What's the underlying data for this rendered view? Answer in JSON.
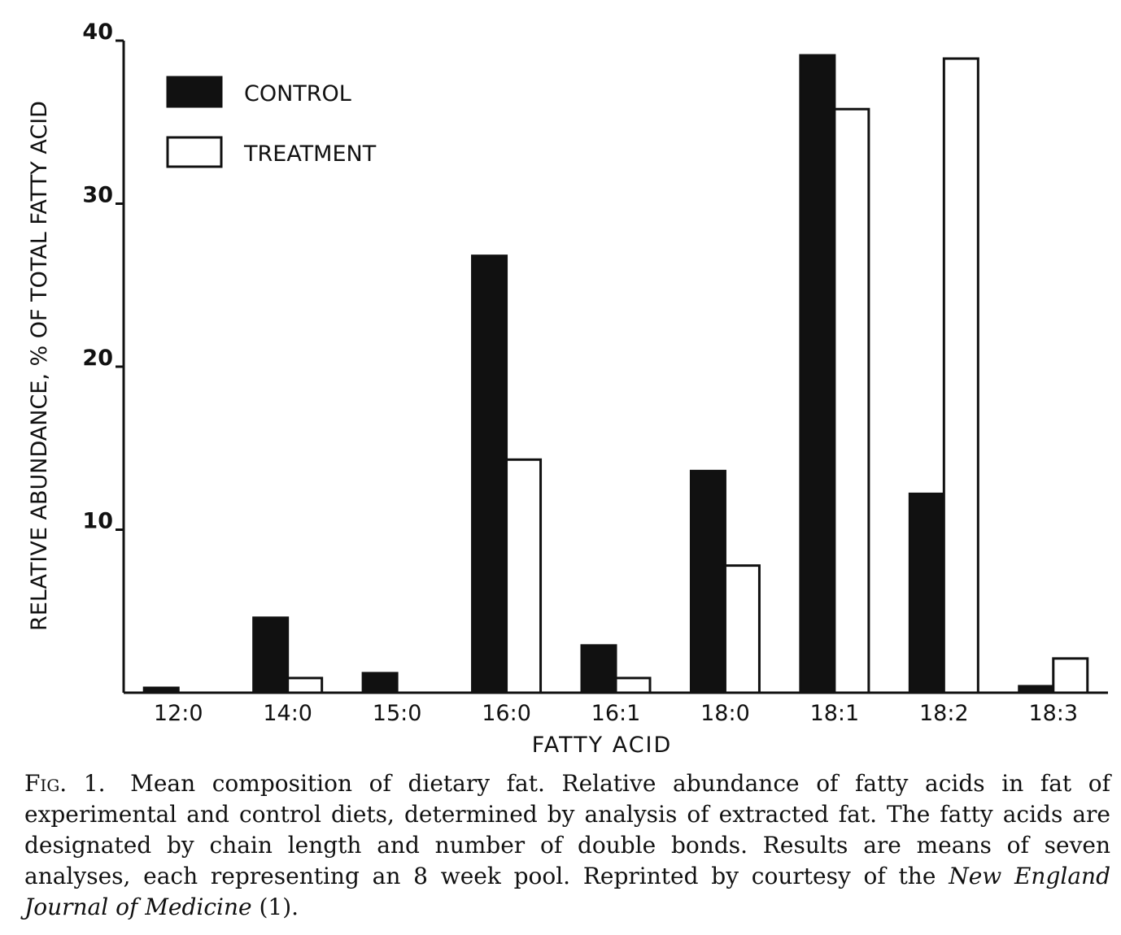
{
  "chart_data": {
    "type": "bar",
    "xlabel": "FATTY ACID",
    "ylabel": "RELATIVE ABUNDANCE, % OF TOTAL FATTY ACID",
    "ylim": [
      0,
      40
    ],
    "yticks": [
      10,
      20,
      30,
      40
    ],
    "ytick_labels": [
      "10",
      "20",
      "30",
      "40"
    ],
    "categories": [
      "12:0",
      "14:0",
      "15:0",
      "16:0",
      "16:1",
      "18:0",
      "18:1",
      "18:2",
      "18:3"
    ],
    "series": [
      {
        "name": "CONTROL",
        "fill": "#111111",
        "values": [
          0.3,
          4.6,
          1.2,
          26.8,
          2.9,
          13.6,
          39.1,
          12.2,
          0.4
        ]
      },
      {
        "name": "TREATMENT",
        "fill": "#ffffff",
        "values": [
          0,
          0.9,
          0,
          14.3,
          0.9,
          7.8,
          35.8,
          38.9,
          2.1
        ]
      }
    ],
    "legend": "top-left",
    "grid": false
  },
  "caption": {
    "label": "Fig. 1.",
    "text": "Mean composition of dietary fat. Relative abundance of fatty acids in fat of experimental and control diets, determined by analysis of extracted fat. The fatty acids are designated by chain length and number of double bonds. Results are means of seven analyses, each representing an 8 week pool. Reprinted by courtesy of the",
    "journal": "New England Journal of Medicine",
    "ref": "(1)."
  }
}
